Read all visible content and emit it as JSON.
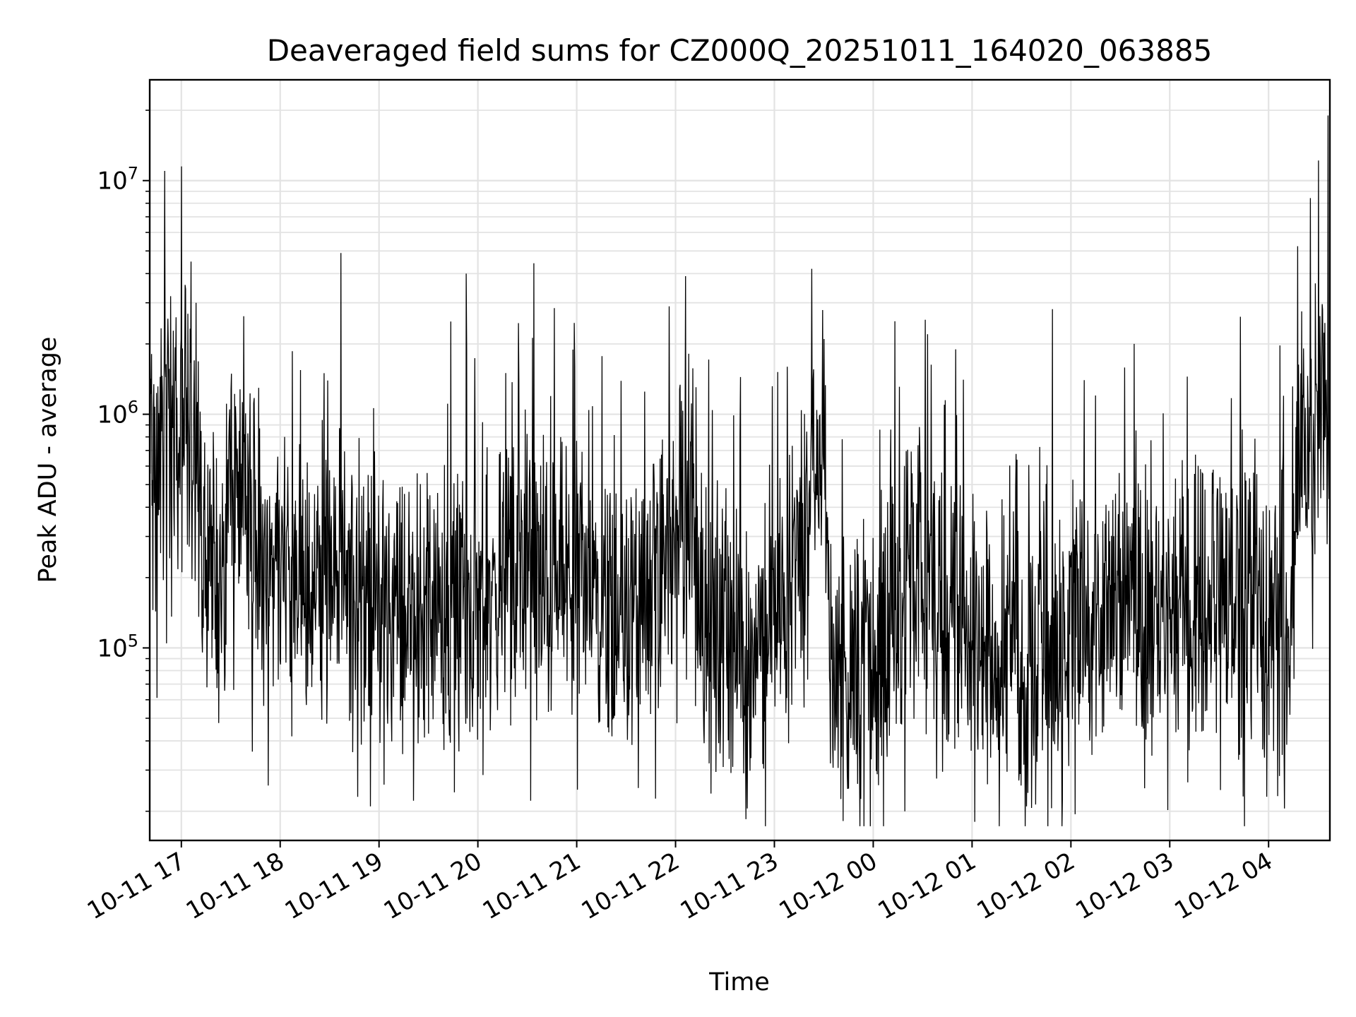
{
  "chart_data": {
    "type": "line",
    "title": "Deaveraged field sums for CZ000Q_20251011_164020_063885",
    "xlabel": "Time",
    "ylabel": "Peak ADU - average",
    "yscale": "log",
    "ylim": [
      15000,
      27000000
    ],
    "xlim_hours": [
      16.68,
      28.62
    ],
    "grid": true,
    "line_color": "#000000",
    "x_ticks": [
      {
        "hour": 17,
        "label": "10-11 17"
      },
      {
        "hour": 18,
        "label": "10-11 18"
      },
      {
        "hour": 19,
        "label": "10-11 19"
      },
      {
        "hour": 20,
        "label": "10-11 20"
      },
      {
        "hour": 21,
        "label": "10-11 21"
      },
      {
        "hour": 22,
        "label": "10-11 22"
      },
      {
        "hour": 23,
        "label": "10-11 23"
      },
      {
        "hour": 24,
        "label": "10-12 00"
      },
      {
        "hour": 25,
        "label": "10-12 01"
      },
      {
        "hour": 26,
        "label": "10-12 02"
      },
      {
        "hour": 27,
        "label": "10-12 03"
      },
      {
        "hour": 28,
        "label": "10-12 04"
      }
    ],
    "y_ticks": [
      {
        "value": 100000,
        "base": "10",
        "exp": "5"
      },
      {
        "value": 1000000,
        "base": "10",
        "exp": "6"
      },
      {
        "value": 10000000,
        "base": "10",
        "exp": "7"
      }
    ],
    "series": [
      {
        "name": "deaveraged field sum",
        "baseline_envelope": [
          {
            "hour": 16.68,
            "value": 700000
          },
          {
            "hour": 17.0,
            "value": 850000
          },
          {
            "hour": 17.12,
            "value": 800000
          },
          {
            "hour": 17.2,
            "value": 350000
          },
          {
            "hour": 17.4,
            "value": 160000
          },
          {
            "hour": 17.5,
            "value": 550000
          },
          {
            "hour": 17.6,
            "value": 600000
          },
          {
            "hour": 17.7,
            "value": 250000
          },
          {
            "hour": 18.0,
            "value": 220000
          },
          {
            "hour": 18.5,
            "value": 200000
          },
          {
            "hour": 19.0,
            "value": 150000
          },
          {
            "hour": 19.5,
            "value": 140000
          },
          {
            "hour": 20.0,
            "value": 160000
          },
          {
            "hour": 20.5,
            "value": 190000
          },
          {
            "hour": 21.0,
            "value": 180000
          },
          {
            "hour": 21.5,
            "value": 160000
          },
          {
            "hour": 21.85,
            "value": 150000
          },
          {
            "hour": 22.1,
            "value": 500000
          },
          {
            "hour": 22.3,
            "value": 150000
          },
          {
            "hour": 22.7,
            "value": 90000
          },
          {
            "hour": 23.0,
            "value": 120000
          },
          {
            "hour": 23.3,
            "value": 300000
          },
          {
            "hour": 23.5,
            "value": 550000
          },
          {
            "hour": 23.6,
            "value": 90000
          },
          {
            "hour": 24.0,
            "value": 90000
          },
          {
            "hour": 24.4,
            "value": 200000
          },
          {
            "hour": 25.0,
            "value": 120000
          },
          {
            "hour": 25.5,
            "value": 90000
          },
          {
            "hour": 26.0,
            "value": 110000
          },
          {
            "hour": 26.5,
            "value": 140000
          },
          {
            "hour": 27.0,
            "value": 150000
          },
          {
            "hour": 27.5,
            "value": 200000
          },
          {
            "hour": 27.9,
            "value": 120000
          },
          {
            "hour": 28.25,
            "value": 150000
          },
          {
            "hour": 28.3,
            "value": 600000
          },
          {
            "hour": 28.62,
            "value": 1100000
          }
        ],
        "spikes": [
          {
            "hour": 16.83,
            "value": 11000000
          },
          {
            "hour": 17.0,
            "value": 11500000
          },
          {
            "hour": 17.1,
            "value": 4500000
          },
          {
            "hour": 17.15,
            "value": 3000000
          },
          {
            "hour": 17.72,
            "value": 36000
          },
          {
            "hour": 19.05,
            "value": 26000
          },
          {
            "hour": 19.88,
            "value": 4000000
          },
          {
            "hour": 22.1,
            "value": 3900000
          },
          {
            "hour": 23.5,
            "value": 2100000
          },
          {
            "hour": 23.75,
            "value": 25000
          },
          {
            "hour": 24.22,
            "value": 2500000
          },
          {
            "hour": 24.32,
            "value": 20000
          },
          {
            "hour": 24.55,
            "value": 2200000
          },
          {
            "hour": 25.55,
            "value": 21000
          },
          {
            "hour": 28.6,
            "value": 19000000
          }
        ]
      }
    ]
  }
}
